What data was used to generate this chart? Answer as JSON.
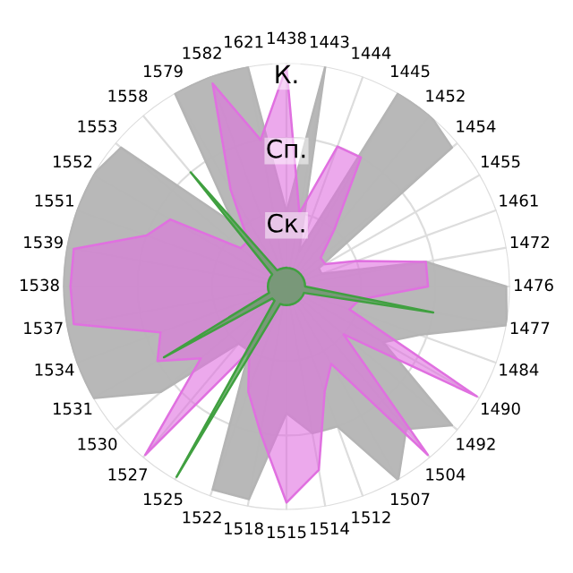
{
  "chart_data": {
    "type": "radar",
    "categories": [
      "1438",
      "1443",
      "1444",
      "1445",
      "1452",
      "1454",
      "1455",
      "1461",
      "1472",
      "1476",
      "1477",
      "1484",
      "1490",
      "1492",
      "1504",
      "1507",
      "1512",
      "1514",
      "1515",
      "1518",
      "1522",
      "1525",
      "1527",
      "1530",
      "1531",
      "1534",
      "1537",
      "1538",
      "1539",
      "1551",
      "1552",
      "1553",
      "1558",
      "1579",
      "1582",
      "1621"
    ],
    "ylim": [
      0,
      3
    ],
    "yticks": [
      {
        "value": 1,
        "label": "Ск."
      },
      {
        "value": 2,
        "label": "Сп."
      },
      {
        "value": 3,
        "label": "К."
      }
    ],
    "grid": true,
    "legend": false,
    "series": [
      {
        "type": "area",
        "color": "#b4b4b4",
        "values": [
          1.0,
          3.0,
          0.5,
          3.0,
          3.0,
          2.9,
          0.5,
          0.5,
          1.9,
          2.95,
          3.0,
          1.9,
          1.5,
          2.9,
          2.5,
          3.0,
          2.0,
          2.0,
          1.7,
          2.9,
          2.9,
          1.0,
          1.0,
          2.2,
          3.0,
          3.0,
          3.0,
          3.0,
          3.0,
          3.0,
          3.0,
          2.9,
          1.1,
          3.0,
          3.0,
          3.0
        ]
      },
      {
        "type": "area",
        "color": "#e070e0",
        "values": [
          2.95,
          1.0,
          2.0,
          2.0,
          1.0,
          0.6,
          0.6,
          1.0,
          1.9,
          1.9,
          1.0,
          0.9,
          2.95,
          1.0,
          2.95,
          1.2,
          1.5,
          2.5,
          2.9,
          2.0,
          1.5,
          1.0,
          2.95,
          1.5,
          2.0,
          1.8,
          2.9,
          2.9,
          2.9,
          2.0,
          1.8,
          0.8,
          0.8,
          1.5,
          2.9,
          2.0
        ]
      },
      {
        "type": "area",
        "color": "#40a040",
        "values": [
          0.25,
          0.25,
          0.25,
          0.25,
          0.25,
          0.25,
          0.25,
          0.25,
          0.25,
          0.25,
          2.0,
          0.25,
          0.25,
          0.25,
          0.25,
          0.25,
          0.25,
          0.25,
          0.25,
          0.25,
          0.25,
          2.95,
          0.25,
          0.25,
          1.9,
          0.25,
          0.25,
          0.25,
          0.25,
          0.25,
          0.25,
          0.25,
          2.0,
          0.25,
          0.25,
          0.25
        ]
      }
    ]
  }
}
